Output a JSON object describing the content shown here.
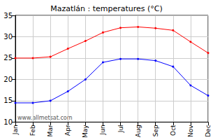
{
  "chart_data": {
    "type": "line",
    "title": "Mazatlán : temperatures (°C)",
    "categories": [
      "Jan",
      "Feb",
      "Mar",
      "Apr",
      "May",
      "Jun",
      "Jul",
      "Aug",
      "Sep",
      "Oct",
      "Nov",
      "Dec"
    ],
    "series": [
      {
        "color": "#ff0000",
        "values": [
          25,
          25,
          25.3,
          27.2,
          29,
          31,
          32.1,
          32.3,
          32,
          31.5,
          28.8,
          26.2
        ]
      },
      {
        "color": "#0000ff",
        "values": [
          14.5,
          14.5,
          15,
          17.2,
          20,
          24,
          24.8,
          24.8,
          24.4,
          23,
          18.6,
          16.2
        ]
      }
    ],
    "ylim": [
      10,
      35
    ],
    "yticks": [
      10,
      15,
      20,
      25,
      30,
      35
    ],
    "grid": true,
    "marker": "circle",
    "annotations": [
      "www.allmetsat.com"
    ]
  }
}
